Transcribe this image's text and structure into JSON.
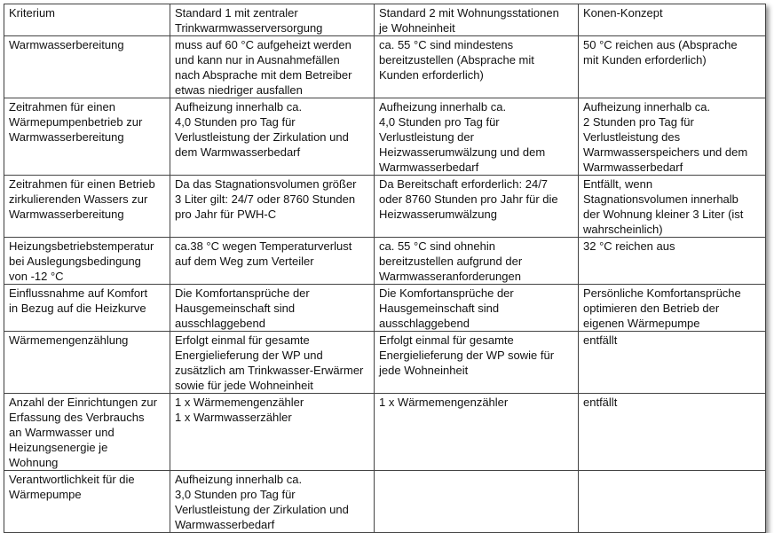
{
  "table": {
    "header": [
      [
        "Kriterium"
      ],
      [
        "Standard 1 mit zentraler",
        "Trinkwarmwasserversorgung"
      ],
      [
        "Standard 2 mit Wohnungsstationen",
        "je Wohneinheit"
      ],
      [
        "Konen-Konzept"
      ]
    ],
    "rows": [
      [
        [
          "Warmwasserbereitung"
        ],
        [
          "muss auf 60 °C aufgeheizt werden",
          "und kann nur in Ausnahmefällen",
          "nach Absprache mit dem Betreiber",
          "etwas niedriger ausfallen"
        ],
        [
          "ca. 55 °C sind mindestens",
          "bereitzustellen (Absprache mit",
          "Kunden erforderlich)"
        ],
        [
          "50 °C reichen aus (Absprache",
          "mit Kunden erforderlich)"
        ]
      ],
      [
        [
          "Zeitrahmen für einen",
          "Wärmepumpenbetrieb zur",
          "Warmwasserbereitung"
        ],
        [
          "Aufheizung innerhalb ca.",
          "4,0 Stunden pro Tag für",
          "Verlustleistung der Zirkulation und",
          "dem Warmwasserbedarf"
        ],
        [
          "Aufheizung innerhalb ca.",
          "4,0 Stunden pro Tag für",
          "Verlustleistung der",
          "Heizwasserumwälzung und dem",
          "Warmwasserbedarf"
        ],
        [
          "Aufheizung innerhalb ca.",
          "2 Stunden pro Tag für",
          "Verlustleistung des",
          "Warmwasserspeichers und dem",
          "Warmwasserbedarf"
        ]
      ],
      [
        [
          "Zeitrahmen für einen Betrieb",
          "zirkulierenden Wassers zur",
          "Warmwasserbereitung"
        ],
        [
          "Da das Stagnationsvolumen größer",
          "3 Liter gilt: 24/7 oder 8760 Stunden",
          "pro Jahr für PWH-C"
        ],
        [
          "Da Bereitschaft erforderlich: 24/7",
          "oder 8760 Stunden pro Jahr für die",
          "Heizwasserumwälzung"
        ],
        [
          "Entfällt, wenn",
          "Stagnationsvolumen innerhalb",
          "der Wohnung kleiner 3 Liter (ist",
          "wahrscheinlich)"
        ]
      ],
      [
        [
          "Heizungsbetriebstemperatur",
          "bei Auslegungsbedingung",
          "von -12 °C"
        ],
        [
          "ca.38 °C wegen Temperaturverlust",
          "auf dem Weg zum Verteiler"
        ],
        [
          "ca. 55 °C sind ohnehin",
          "bereitzustellen aufgrund der",
          "Warmwasseranforderungen"
        ],
        [
          "32 °C reichen aus"
        ]
      ],
      [
        [
          "Einflussnahme auf Komfort",
          "in Bezug auf die Heizkurve"
        ],
        [
          "Die Komfortansprüche der",
          "Hausgemeinschaft sind",
          "ausschlaggebend"
        ],
        [
          "Die Komfortansprüche der",
          "Hausgemeinschaft sind",
          "ausschlaggebend"
        ],
        [
          "Persönliche Komfortansprüche",
          "optimieren den Betrieb der",
          "eigenen Wärmepumpe"
        ]
      ],
      [
        [
          "Wärmemengenzählung"
        ],
        [
          "Erfolgt einmal für gesamte",
          "Energielieferung der WP und",
          "zusätzlich am Trinkwasser-Erwärmer",
          "sowie für jede Wohneinheit"
        ],
        [
          "Erfolgt einmal für gesamte",
          "Energielieferung der WP sowie für",
          "jede Wohneinheit"
        ],
        [
          "entfällt"
        ]
      ],
      [
        [
          "Anzahl der Einrichtungen zur",
          "Erfassung des Verbrauchs",
          "an Warmwasser und",
          "Heizungsenergie je",
          "Wohnung"
        ],
        [
          "1 x Wärmemengenzähler",
          "1 x Warmwasserzähler"
        ],
        [
          "1 x Wärmemengenzähler"
        ],
        [
          "entfällt"
        ]
      ],
      [
        [
          "Verantwortlichkeit für die",
          "Wärmepumpe"
        ],
        [
          "Aufheizung innerhalb ca.",
          "3,0 Stunden pro Tag für",
          "Verlustleistung der Zirkulation und",
          "Warmwasserbedarf"
        ],
        [],
        []
      ]
    ]
  }
}
